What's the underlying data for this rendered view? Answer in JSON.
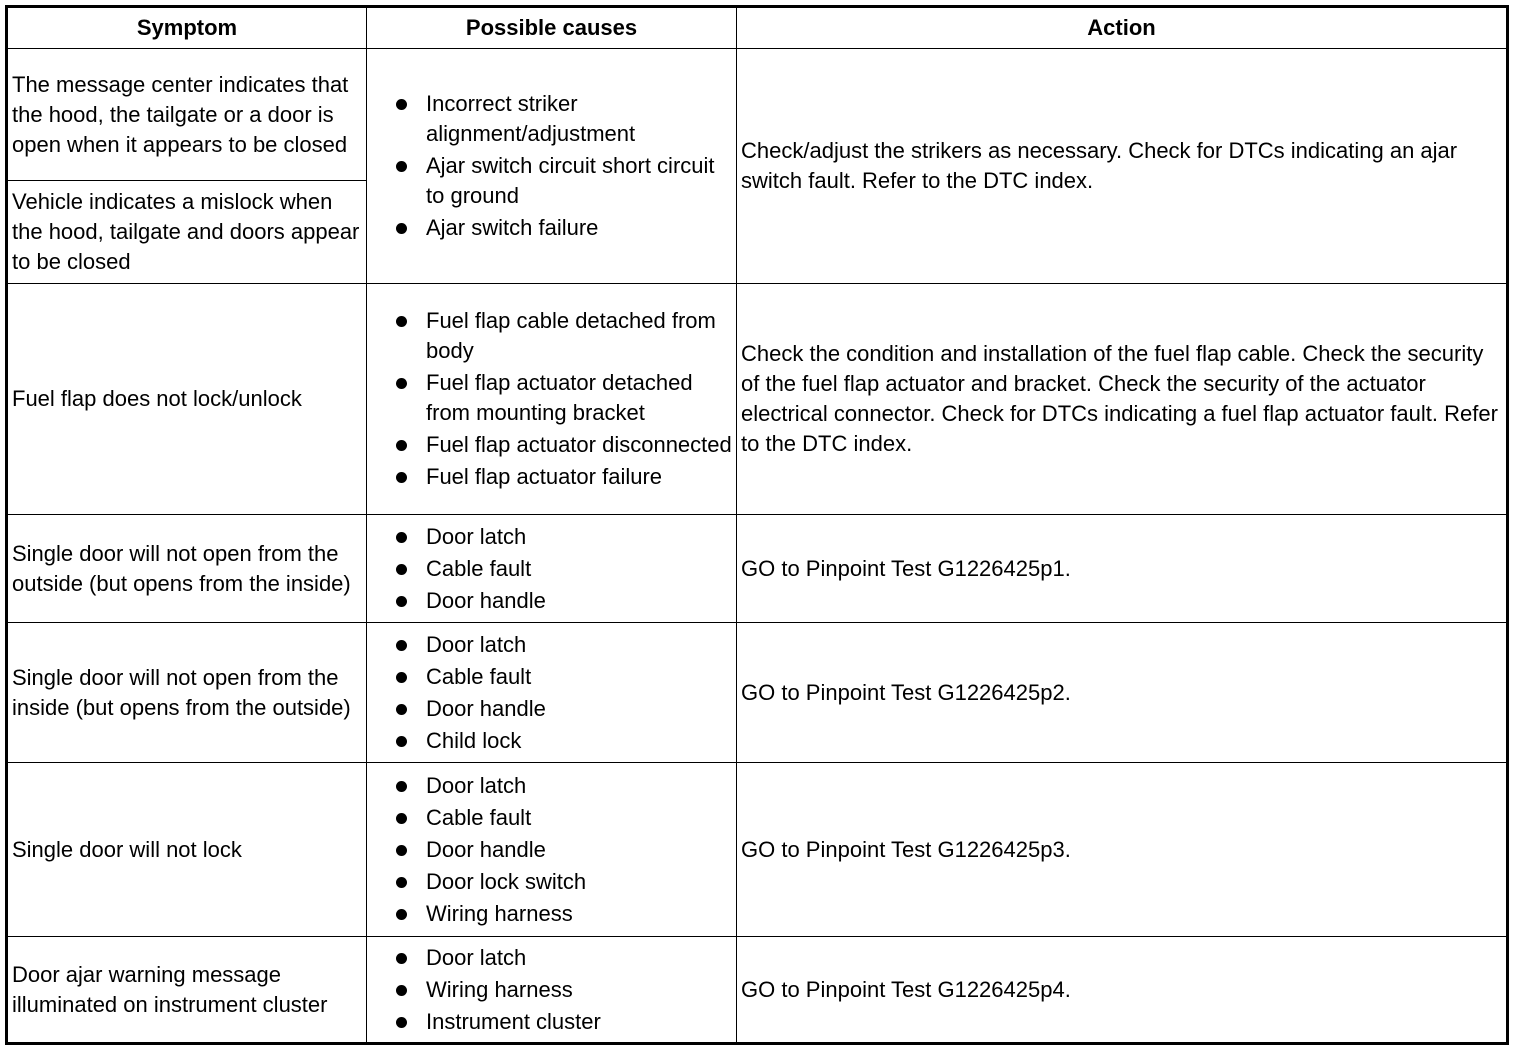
{
  "headers": [
    "Symptom",
    "Possible causes",
    "Action"
  ],
  "rows": [
    {
      "symptoms": [
        "The message center indicates that the hood, the tailgate or a door is open when it appears to be closed",
        "Vehicle indicates a mislock when the hood, tailgate and doors appear to be closed"
      ],
      "causes": [
        "Incorrect striker alignment/adjustment",
        "Ajar switch circuit short circuit to ground",
        "Ajar switch failure"
      ],
      "action": "Check/adjust the strikers as necessary. Check for DTCs indicating an ajar switch fault. Refer to the DTC index."
    },
    {
      "symptoms": [
        "Fuel flap does not lock/unlock"
      ],
      "causes": [
        "Fuel flap cable detached from body",
        "Fuel flap actuator detached from mounting bracket",
        "Fuel flap actuator disconnected",
        "Fuel flap actuator failure"
      ],
      "action": "Check the condition and installation of the fuel flap cable. Check the security of the fuel flap actuator and bracket. Check the security of the actuator electrical connector. Check for DTCs indicating a fuel flap actuator fault. Refer to the DTC index."
    },
    {
      "symptoms": [
        "Single door will not open from the outside (but opens from the inside)"
      ],
      "causes": [
        "Door latch",
        "Cable fault",
        "Door handle"
      ],
      "action": "GO to Pinpoint Test G1226425p1."
    },
    {
      "symptoms": [
        "Single door will not open from the inside (but opens from the outside)"
      ],
      "causes": [
        "Door latch",
        "Cable fault",
        "Door handle",
        "Child lock"
      ],
      "action": "GO to Pinpoint Test G1226425p2."
    },
    {
      "symptoms": [
        "Single door will not lock"
      ],
      "causes": [
        "Door latch",
        "Cable fault",
        "Door handle",
        "Door lock switch",
        "Wiring harness"
      ],
      "action": "GO to Pinpoint Test G1226425p3."
    },
    {
      "symptoms": [
        "Door ajar warning message illuminated on instrument cluster"
      ],
      "causes": [
        "Door latch",
        "Wiring harness",
        "Instrument cluster"
      ],
      "action": "GO to Pinpoint Test G1226425p4."
    }
  ]
}
